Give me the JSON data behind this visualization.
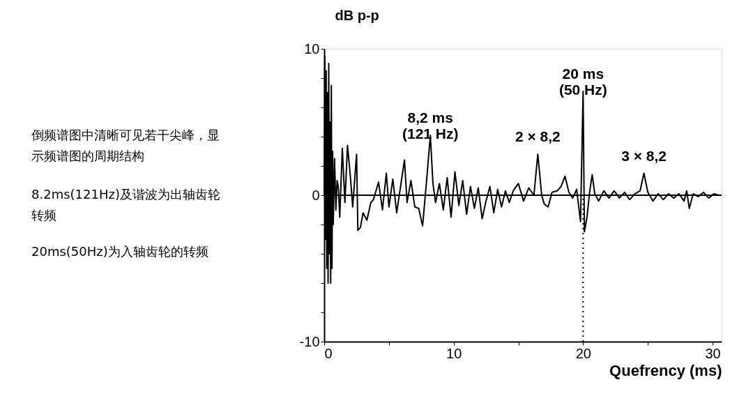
{
  "chart_data": {
    "type": "line",
    "ylabel": "dB p-p",
    "xlabel": "Quefrency (ms)",
    "xlim": [
      0,
      30.7
    ],
    "ylim": [
      -10,
      10
    ],
    "xticks": [
      0,
      {
        "value": 5,
        "label": null
      },
      10,
      {
        "value": 15,
        "label": null
      },
      20,
      {
        "value": 25,
        "label": null
      },
      30
    ],
    "yticks": [
      -10,
      {
        "value": -8,
        "label": null
      },
      {
        "value": -6,
        "label": null
      },
      {
        "value": -4,
        "label": null
      },
      {
        "value": -2,
        "label": null
      },
      0,
      {
        "value": 2,
        "label": null
      },
      {
        "value": 4,
        "label": null
      },
      {
        "value": 6,
        "label": null
      },
      {
        "value": 8,
        "label": null
      },
      10
    ],
    "grid": false,
    "marker": "none",
    "line_style": "solid",
    "series": [
      {
        "color": "#000000",
        "x": [
          0,
          0.05,
          0.1,
          0.15,
          0.2,
          0.25,
          0.3,
          0.35,
          0.4,
          0.45,
          0.5,
          0.55,
          0.6,
          0.65,
          0.7,
          0.8,
          0.9,
          1.0,
          1.1,
          1.2,
          1.4,
          1.6,
          1.8,
          2.0,
          2.2,
          2.5,
          2.6,
          2.8,
          3.0,
          3.3,
          3.6,
          3.8,
          4.2,
          4.5,
          4.8,
          5.0,
          5.3,
          5.6,
          5.9,
          6.2,
          6.4,
          6.7,
          7.0,
          7.3,
          7.6,
          7.9,
          8.2,
          8.4,
          8.6,
          8.9,
          9.2,
          9.5,
          9.8,
          10.1,
          10.4,
          10.7,
          11.0,
          11.3,
          11.6,
          11.9,
          12.2,
          12.5,
          12.8,
          13.1,
          13.4,
          13.7,
          14.0,
          14.3,
          14.6,
          15.0,
          15.4,
          15.8,
          16.2,
          16.5,
          16.8,
          17.0,
          17.3,
          17.6,
          18.0,
          18.3,
          18.6,
          18.9,
          19.2,
          19.5,
          19.8,
          20.0,
          20.1,
          20.3,
          20.5,
          20.7,
          20.9,
          21.2,
          21.6,
          22.0,
          22.4,
          22.8,
          23.2,
          23.6,
          24.0,
          24.4,
          24.7,
          25.0,
          25.4,
          25.8,
          26.2,
          26.6,
          27.0,
          27.4,
          27.8,
          28.0,
          28.2,
          28.5,
          28.9,
          29.3,
          29.7,
          30.1,
          30.5
        ],
        "values": [
          0,
          9.5,
          -3,
          8.5,
          -5,
          7,
          -6,
          9,
          -4,
          5,
          -6,
          7.5,
          -5,
          3,
          -2,
          2.5,
          -1,
          1,
          0.5,
          -1.5,
          3.2,
          -0.5,
          3.4,
          1.5,
          -0.8,
          2.8,
          -2.4,
          -2.2,
          -1.2,
          -1.7,
          -0.5,
          -0.3,
          0.9,
          -1.0,
          1.5,
          -0.8,
          1.1,
          -1.2,
          0.6,
          2.4,
          -0.5,
          1.0,
          -0.8,
          -0.9,
          -2.1,
          0.9,
          4.1,
          0.8,
          -0.5,
          0.8,
          -1.0,
          1.2,
          -1.5,
          1.6,
          -0.7,
          1.0,
          -1.3,
          0.6,
          -0.9,
          0.5,
          -1.6,
          -0.4,
          0.6,
          -1.2,
          0.4,
          -0.8,
          0.3,
          -0.5,
          0.3,
          0.8,
          -0.4,
          0.5,
          0,
          2.8,
          0,
          -0.6,
          -0.8,
          0.2,
          0.3,
          0.6,
          1.3,
          0.2,
          -0.2,
          0.4,
          -1.8,
          7.1,
          -2.5,
          -1.5,
          0.2,
          1.4,
          0.1,
          -0.4,
          0.3,
          -0.2,
          0.3,
          -0.2,
          0.2,
          -0.3,
          0.1,
          0.3,
          1.5,
          0.2,
          -0.4,
          0.1,
          -0.3,
          0.1,
          -0.2,
          0.1,
          -0.4,
          0.3,
          -0.9,
          0.1,
          -0.1,
          0.2,
          -0.2,
          0.1,
          0
        ]
      }
    ],
    "ref_lines": [
      {
        "axis": "y",
        "value": 0,
        "line_style": "solid"
      },
      {
        "axis": "x",
        "value": 20,
        "line_style": "dotted"
      }
    ],
    "annotations": [
      {
        "text": "8,2 ms\n(121 Hz)",
        "x": 8.2,
        "y": 4.1
      },
      {
        "text": "2 × 8,2",
        "x": 16.5,
        "y": 2.8
      },
      {
        "text": "20 ms\n(50 Hz)",
        "x": 20,
        "y": 7.1
      },
      {
        "text": "3 × 8,2",
        "x": 24.7,
        "y": 1.5
      },
      "倒频谱图中清晰可见若干尖峰，显示频谱图的周期结构",
      "8.2ms(121Hz)及谐波为出轴齿轮转频",
      "20ms(50Hz)为入轴齿轮的转频"
    ]
  }
}
